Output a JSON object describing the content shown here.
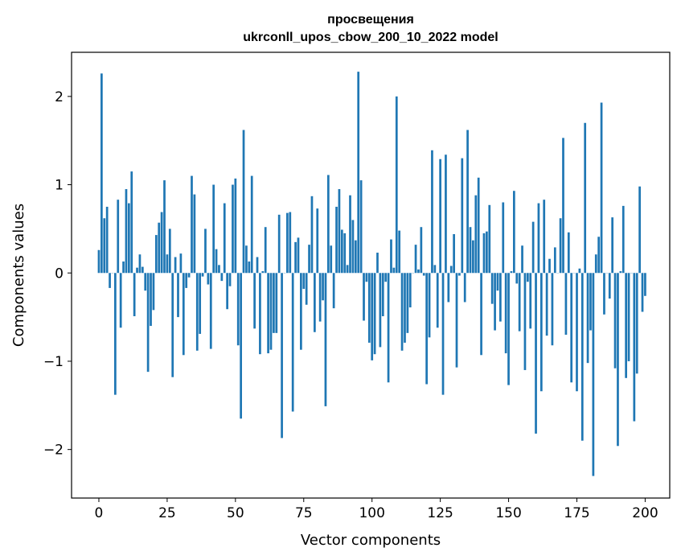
{
  "chart_data": {
    "type": "bar",
    "title": "просвещения",
    "subtitle": "ukrconll_upos_cbow_200_10_2022 model",
    "xlabel": "Vector components",
    "ylabel": "Components values",
    "xlim": [
      -10,
      209
    ],
    "ylim": [
      -2.55,
      2.5
    ],
    "xticks": [
      0,
      25,
      50,
      75,
      100,
      125,
      150,
      175,
      200
    ],
    "yticks": [
      -2,
      -1,
      0,
      1,
      2
    ],
    "ytick_labels": [
      "−2",
      "−1",
      "0",
      "1",
      "2"
    ],
    "grid": false,
    "bar_color": "#1f77b4",
    "values": [
      0.26,
      2.26,
      0.62,
      0.75,
      -0.17,
      0.0,
      -1.38,
      0.83,
      -0.62,
      0.13,
      0.95,
      0.79,
      1.15,
      -0.49,
      0.06,
      0.21,
      0.07,
      -0.2,
      -1.12,
      -0.6,
      -0.42,
      0.43,
      0.57,
      0.69,
      1.05,
      0.21,
      0.5,
      -1.18,
      0.18,
      -0.5,
      0.22,
      -0.93,
      -0.17,
      -0.05,
      1.1,
      0.89,
      -0.88,
      -0.69,
      -0.04,
      0.5,
      -0.13,
      -0.86,
      1.0,
      0.27,
      0.09,
      -0.09,
      0.79,
      -0.41,
      -0.15,
      1.0,
      1.07,
      -0.82,
      -1.65,
      1.62,
      0.31,
      0.13,
      1.1,
      -0.63,
      0.18,
      -0.92,
      0.02,
      0.52,
      -0.91,
      -0.87,
      -0.68,
      -0.68,
      0.66,
      -1.87,
      0.0,
      0.68,
      0.69,
      -1.57,
      0.35,
      0.4,
      -0.87,
      -0.18,
      -0.36,
      0.32,
      0.87,
      -0.67,
      0.73,
      -0.55,
      -0.31,
      -1.51,
      1.11,
      0.31,
      -0.4,
      0.75,
      0.95,
      0.49,
      0.45,
      0.09,
      0.88,
      0.6,
      0.37,
      2.28,
      1.05,
      -0.54,
      -0.1,
      -0.79,
      -0.99,
      -0.92,
      0.23,
      -0.84,
      -0.49,
      -0.1,
      -1.24,
      0.38,
      0.06,
      2.0,
      0.48,
      -0.88,
      -0.79,
      -0.68,
      -0.39,
      0.0,
      0.32,
      0.04,
      0.52,
      -0.03,
      -1.26,
      -0.73,
      1.39,
      0.09,
      -0.62,
      1.29,
      -1.38,
      1.34,
      -0.33,
      0.08,
      0.44,
      -1.07,
      -0.03,
      1.3,
      -0.33,
      1.62,
      0.52,
      0.37,
      0.88,
      1.08,
      -0.93,
      0.45,
      0.47,
      0.77,
      -0.35,
      -0.65,
      -0.2,
      -0.55,
      0.8,
      -0.91,
      -1.27,
      0.02,
      0.93,
      -0.12,
      -0.66,
      0.31,
      -1.1,
      -0.1,
      -0.63,
      0.58,
      -1.82,
      0.79,
      -1.34,
      0.83,
      -0.71,
      0.16,
      -0.82,
      0.29,
      0.0,
      0.62,
      1.53,
      -0.7,
      0.46,
      -1.24,
      0.0,
      -1.34,
      0.05,
      -1.9,
      1.7,
      -1.02,
      -0.65,
      -2.3,
      0.21,
      0.41,
      1.93,
      -0.47,
      0.0,
      -0.29,
      0.63,
      -1.08,
      -1.96,
      0.02,
      0.76,
      -1.19,
      -1.0,
      0.0,
      -1.68,
      -1.14,
      0.98,
      -0.44,
      -0.26
    ]
  }
}
